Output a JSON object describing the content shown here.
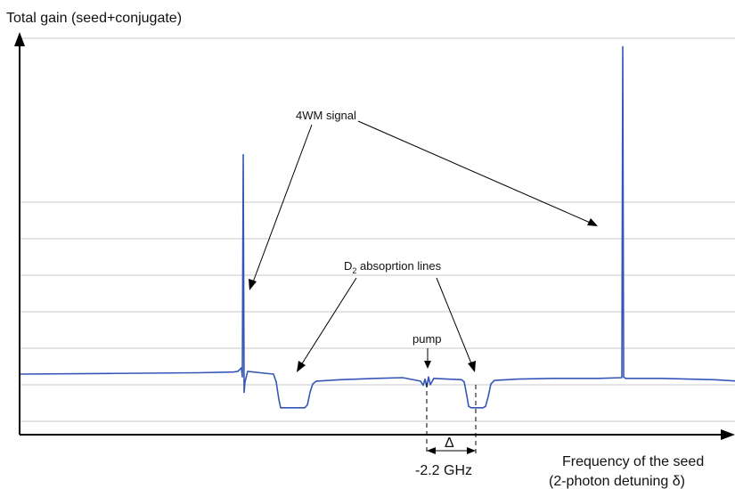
{
  "chart_data": {
    "type": "line",
    "ylabel": "Total gain (seed+conjugate)",
    "xlabel_line1": "Frequency of the seed",
    "xlabel_line2": "(2-photon detuning δ)",
    "grid": true,
    "annotations": {
      "signal": "4WM signal",
      "absorption_main": "D",
      "absorption_sub": "2",
      "absorption_rest": " absoprtion lines",
      "pump": "pump",
      "delta": "Δ",
      "freq_offset": "-2.2 GHz"
    },
    "series": [
      {
        "color": "#3556b8",
        "points": [
          [
            0,
            0.66
          ],
          [
            100,
            0.67
          ],
          [
            200,
            0.68
          ],
          [
            240,
            0.69
          ],
          [
            245,
            0.7
          ],
          [
            249,
            0.75
          ],
          [
            250,
            0.62
          ],
          [
            251,
            3.79
          ],
          [
            252,
            0.4
          ],
          [
            253,
            0.55
          ],
          [
            256,
            0.7
          ],
          [
            270,
            0.68
          ],
          [
            285,
            0.66
          ],
          [
            288,
            0.55
          ],
          [
            291,
            0.3
          ],
          [
            293,
            0.18
          ],
          [
            300,
            0.18
          ],
          [
            320,
            0.18
          ],
          [
            323,
            0.22
          ],
          [
            326,
            0.4
          ],
          [
            329,
            0.52
          ],
          [
            333,
            0.56
          ],
          [
            360,
            0.58
          ],
          [
            400,
            0.6
          ],
          [
            430,
            0.61
          ],
          [
            450,
            0.56
          ],
          [
            453,
            0.5
          ],
          [
            455,
            0.59
          ],
          [
            457,
            0.48
          ],
          [
            459,
            0.62
          ],
          [
            461,
            0.51
          ],
          [
            465,
            0.6
          ],
          [
            480,
            0.59
          ],
          [
            496,
            0.58
          ],
          [
            499,
            0.55
          ],
          [
            502,
            0.35
          ],
          [
            504,
            0.2
          ],
          [
            507,
            0.18
          ],
          [
            520,
            0.18
          ],
          [
            523,
            0.2
          ],
          [
            526,
            0.34
          ],
          [
            529,
            0.52
          ],
          [
            533,
            0.57
          ],
          [
            560,
            0.59
          ],
          [
            600,
            0.6
          ],
          [
            650,
            0.6
          ],
          [
            676,
            0.61
          ],
          [
            677,
            5.33
          ],
          [
            678,
            0.62
          ],
          [
            680,
            0.6
          ],
          [
            720,
            0.6
          ],
          [
            780,
            0.58
          ],
          [
            806,
            0.56
          ]
        ]
      }
    ]
  }
}
